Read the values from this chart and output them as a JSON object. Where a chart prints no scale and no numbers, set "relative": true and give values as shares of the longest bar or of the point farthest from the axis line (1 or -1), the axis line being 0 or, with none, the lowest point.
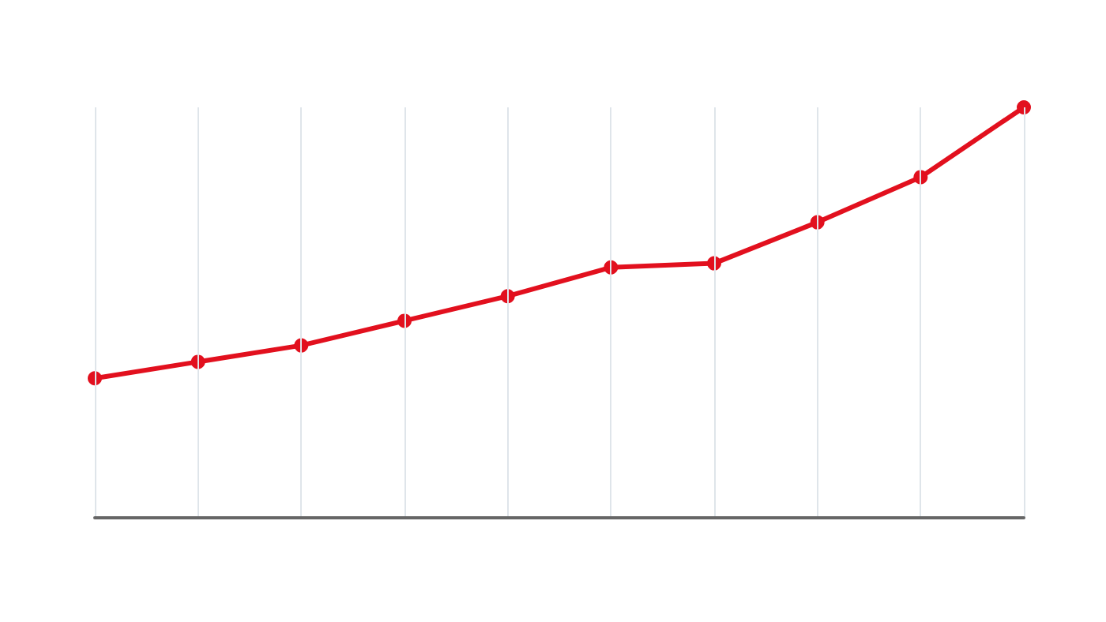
{
  "chart_data": {
    "type": "line",
    "relative": true,
    "categories": [
      null,
      null,
      null,
      null,
      null,
      null,
      null,
      null,
      null,
      null
    ],
    "series": [
      {
        "color": "#e2101e",
        "values": [
          0.34,
          0.38,
          0.42,
          0.48,
          0.54,
          0.61,
          0.62,
          0.72,
          0.83,
          1
        ]
      }
    ],
    "marker": "circle",
    "line_style": "solid",
    "grid": "x"
  }
}
